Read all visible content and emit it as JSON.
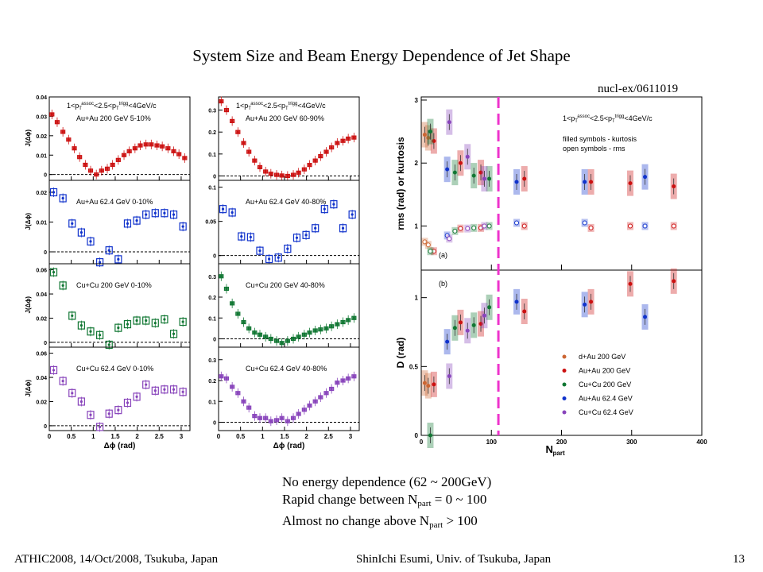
{
  "title": "System Size and Beam Energy Dependence of Jet Shape",
  "reference": "nucl-ex/0611019",
  "notes": [
    {
      "pre": "No energy dependence (62 ~ 200GeV)",
      "sub": "",
      "post": ""
    },
    {
      "pre": "Rapid change between N",
      "sub": "part",
      "post": " = 0 ~ 100"
    },
    {
      "pre": "Almost no change above N",
      "sub": "part",
      "post": " > 100"
    }
  ],
  "footer": {
    "left": "ATHIC2008, 14/Oct/2008, Tsukuba, Japan",
    "center": "ShinIchi Esumi, Univ. of Tsukuba, Japan",
    "page": "13"
  },
  "colors": {
    "auau200": "#cc1111",
    "auau62": "#1133cc",
    "cucu200": "#117733",
    "cucu62": "#8844bb",
    "dau": "#cc6633",
    "magenta": "#ee33cc"
  },
  "chart_data": [
    {
      "type": "scatter",
      "column": "left",
      "xlabel": "Δϕ (rad)",
      "ylabel": "J(Δϕ)",
      "xlim": [
        0,
        3.2
      ],
      "x_ticks": [
        "0",
        "0.5",
        "1",
        "1.5",
        "2",
        "2.5",
        "3"
      ],
      "kinematics": "1<p_T^assoc<2.5<p_T^trigg<4GeV/c",
      "panels": [
        {
          "label": "Au+Au 200 GeV 5-10%",
          "color": "#cc1111",
          "ylim": [
            -0.003,
            0.04
          ],
          "y_ticks": [
            "0",
            "0.01",
            "0.02",
            "0.03",
            "0.04"
          ],
          "x": [
            0.06,
            0.18,
            0.31,
            0.44,
            0.57,
            0.69,
            0.82,
            0.94,
            1.07,
            1.19,
            1.32,
            1.44,
            1.57,
            1.7,
            1.82,
            1.95,
            2.07,
            2.2,
            2.32,
            2.45,
            2.57,
            2.7,
            2.83,
            2.95,
            3.08
          ],
          "y": [
            0.031,
            0.027,
            0.022,
            0.018,
            0.0135,
            0.009,
            0.005,
            0.002,
            0.0,
            0.002,
            0.003,
            0.005,
            0.0075,
            0.01,
            0.012,
            0.0135,
            0.015,
            0.0155,
            0.0155,
            0.015,
            0.0145,
            0.0135,
            0.012,
            0.0105,
            0.0085
          ]
        },
        {
          "label": "Au+Au 62.4 GeV 0-10%",
          "color": "#1133cc",
          "ylim": [
            -0.004,
            0.024
          ],
          "y_ticks": [
            "0",
            "0.01",
            "0.02"
          ],
          "x": [
            0.1,
            0.31,
            0.52,
            0.73,
            0.94,
            1.15,
            1.36,
            1.57,
            1.78,
            1.99,
            2.2,
            2.41,
            2.62,
            2.83,
            3.04
          ],
          "y": [
            0.02,
            0.018,
            0.0095,
            0.0065,
            0.0035,
            -0.0035,
            0.0005,
            -0.0025,
            0.0095,
            0.0105,
            0.0125,
            0.013,
            0.013,
            0.0125,
            0.0085
          ]
        },
        {
          "label": "Cu+Cu 200 GeV 0-10%",
          "color": "#117733",
          "ylim": [
            -0.004,
            0.065
          ],
          "y_ticks": [
            "0",
            "0.02",
            "0.04",
            "0.06"
          ],
          "x": [
            0.1,
            0.31,
            0.52,
            0.73,
            0.94,
            1.15,
            1.36,
            1.57,
            1.78,
            1.99,
            2.2,
            2.41,
            2.62,
            2.83,
            3.04
          ],
          "y": [
            0.058,
            0.047,
            0.022,
            0.014,
            0.009,
            0.006,
            -0.002,
            0.012,
            0.015,
            0.018,
            0.018,
            0.016,
            0.019,
            0.007,
            0.017
          ]
        },
        {
          "label": "Cu+Cu 62.4 GeV 0-10%",
          "color": "#8844bb",
          "ylim": [
            -0.004,
            0.065
          ],
          "y_ticks": [
            "0",
            "0.02",
            "0.04",
            "0.06"
          ],
          "x": [
            0.1,
            0.31,
            0.52,
            0.73,
            0.94,
            1.15,
            1.36,
            1.57,
            1.78,
            1.99,
            2.2,
            2.41,
            2.62,
            2.83,
            3.04
          ],
          "y": [
            0.046,
            0.037,
            0.027,
            0.02,
            0.009,
            -0.001,
            0.01,
            0.013,
            0.019,
            0.024,
            0.034,
            0.029,
            0.03,
            0.03,
            0.028
          ]
        }
      ]
    },
    {
      "type": "scatter",
      "column": "middle",
      "xlabel": "Δϕ (rad)",
      "ylabel": "",
      "xlim": [
        0,
        3.2
      ],
      "x_ticks": [
        "0",
        "0.5",
        "1",
        "1.5",
        "2",
        "2.5",
        "3"
      ],
      "kinematics": "1<p_T^assoc<2.5<p_T^trigg<4GeV/c",
      "panels": [
        {
          "label": "Au+Au 200 GeV 60-90%",
          "color": "#cc1111",
          "ylim": [
            -0.02,
            0.36
          ],
          "y_ticks": [
            "0",
            "0.1",
            "0.2",
            "0.3"
          ],
          "x": [
            0.06,
            0.18,
            0.31,
            0.44,
            0.57,
            0.69,
            0.82,
            0.94,
            1.07,
            1.19,
            1.32,
            1.44,
            1.57,
            1.7,
            1.82,
            1.95,
            2.07,
            2.2,
            2.32,
            2.45,
            2.57,
            2.7,
            2.83,
            2.95,
            3.08
          ],
          "y": [
            0.34,
            0.3,
            0.25,
            0.2,
            0.15,
            0.11,
            0.07,
            0.04,
            0.02,
            0.01,
            0.005,
            0.002,
            0.0,
            0.005,
            0.015,
            0.03,
            0.05,
            0.07,
            0.09,
            0.11,
            0.13,
            0.15,
            0.16,
            0.17,
            0.175
          ]
        },
        {
          "label": "Au+Au 62.4 GeV 40-80%",
          "color": "#1133cc",
          "ylim": [
            -0.012,
            0.11
          ],
          "y_ticks": [
            "0",
            "0.05",
            "0.1"
          ],
          "x": [
            0.1,
            0.31,
            0.52,
            0.73,
            0.94,
            1.15,
            1.36,
            1.57,
            1.78,
            1.99,
            2.2,
            2.41,
            2.62,
            2.83,
            3.04
          ],
          "y": [
            0.068,
            0.063,
            0.028,
            0.027,
            0.007,
            -0.005,
            -0.003,
            0.01,
            0.026,
            0.03,
            0.04,
            0.068,
            0.075,
            0.04,
            0.06
          ]
        },
        {
          "label": "Cu+Cu 200 GeV 40-80%",
          "color": "#117733",
          "ylim": [
            -0.04,
            0.36
          ],
          "y_ticks": [
            "0",
            "0.1",
            "0.2",
            "0.3"
          ],
          "x": [
            0.06,
            0.18,
            0.31,
            0.44,
            0.57,
            0.69,
            0.82,
            0.94,
            1.07,
            1.19,
            1.32,
            1.44,
            1.57,
            1.7,
            1.82,
            1.95,
            2.07,
            2.2,
            2.32,
            2.45,
            2.57,
            2.7,
            2.83,
            2.95,
            3.08
          ],
          "y": [
            0.3,
            0.24,
            0.17,
            0.12,
            0.08,
            0.05,
            0.03,
            0.02,
            0.01,
            0.0,
            -0.01,
            -0.02,
            -0.01,
            0.0,
            0.01,
            0.02,
            0.03,
            0.04,
            0.045,
            0.05,
            0.06,
            0.07,
            0.08,
            0.09,
            0.1
          ]
        },
        {
          "label": "Cu+Cu 62.4 GeV 40-80%",
          "color": "#8844bb",
          "ylim": [
            -0.04,
            0.36
          ],
          "y_ticks": [
            "0",
            "0.1",
            "0.2",
            "0.3"
          ],
          "x": [
            0.06,
            0.18,
            0.31,
            0.44,
            0.57,
            0.69,
            0.82,
            0.94,
            1.07,
            1.19,
            1.32,
            1.44,
            1.57,
            1.7,
            1.82,
            1.95,
            2.07,
            2.2,
            2.32,
            2.45,
            2.57,
            2.7,
            2.83,
            2.95,
            3.08
          ],
          "y": [
            0.22,
            0.21,
            0.17,
            0.14,
            0.1,
            0.07,
            0.03,
            0.02,
            0.02,
            0.005,
            0.01,
            0.02,
            0.005,
            0.02,
            0.04,
            0.06,
            0.08,
            0.1,
            0.12,
            0.14,
            0.16,
            0.19,
            0.2,
            0.21,
            0.22
          ]
        }
      ]
    },
    {
      "type": "scatter",
      "column": "right-top",
      "panel_tag": "(a)",
      "ylabel": "rms (rad) or kurtosis",
      "xlim": [
        0,
        400
      ],
      "ylim": [
        0.3,
        3.05
      ],
      "y_ticks": [
        "1",
        "2",
        "3"
      ],
      "kinematics": "1<p_T^assoc<2.5<p_T^trigg<4GeV/c",
      "notes": [
        "filled symbols - kurtosis",
        "open symbols - rms"
      ],
      "series": [
        {
          "name": "d+Au 200 GeV",
          "color": "#cc6633",
          "x": [
            5,
            10
          ],
          "y": [
            2.45,
            2.4
          ],
          "rms": [
            0.75,
            0.7
          ]
        },
        {
          "name": "Au+Au 200 GeV",
          "color": "#cc1111",
          "x": [
            18,
            56,
            85,
            147,
            242,
            298,
            360
          ],
          "y": [
            2.35,
            2.0,
            1.85,
            1.75,
            1.7,
            1.68,
            1.63
          ],
          "rms": [
            0.6,
            0.96,
            0.97,
            1.0,
            0.97,
            1.0,
            1.0
          ]
        },
        {
          "name": "Cu+Cu 200 GeV",
          "color": "#117733",
          "x": [
            13,
            48,
            75,
            97
          ],
          "y": [
            2.5,
            1.85,
            1.8,
            1.75
          ],
          "rms": [
            0.6,
            0.92,
            0.97,
            1.0
          ]
        },
        {
          "name": "Au+Au 62.4 GeV",
          "color": "#1133cc",
          "x": [
            37,
            136,
            233,
            319
          ],
          "y": [
            1.9,
            1.7,
            1.7,
            1.78
          ],
          "rms": [
            0.85,
            1.05,
            1.05,
            1.0
          ]
        },
        {
          "name": "Cu+Cu 62.4 GeV",
          "color": "#8844bb",
          "x": [
            40,
            66,
            90
          ],
          "y": [
            2.65,
            2.1,
            1.75
          ],
          "rms": [
            0.8,
            0.96,
            1.0
          ]
        }
      ]
    },
    {
      "type": "scatter",
      "column": "right-bottom",
      "panel_tag": "(b)",
      "xlabel": "N_part",
      "ylabel": "D (rad)",
      "xlim": [
        0,
        400
      ],
      "ylim": [
        0,
        1.2
      ],
      "x_ticks": [
        "0",
        "100",
        "200",
        "300",
        "400"
      ],
      "y_ticks": [
        "0",
        "0.5",
        "1"
      ],
      "series": [
        {
          "name": "d+Au 200 GeV",
          "color": "#cc6633",
          "x": [
            5,
            10
          ],
          "y": [
            0.38,
            0.36
          ]
        },
        {
          "name": "Au+Au 200 GeV",
          "color": "#cc1111",
          "x": [
            18,
            56,
            85,
            147,
            242,
            298,
            360
          ],
          "y": [
            0.37,
            0.82,
            0.81,
            0.9,
            0.97,
            1.1,
            1.12
          ]
        },
        {
          "name": "Cu+Cu 200 GeV",
          "color": "#117733",
          "x": [
            13,
            48,
            75,
            97
          ],
          "y": [
            0.0,
            0.78,
            0.8,
            0.93
          ]
        },
        {
          "name": "Au+Au 62.4 GeV",
          "color": "#1133cc",
          "x": [
            37,
            136,
            233,
            319
          ],
          "y": [
            0.68,
            0.97,
            0.95,
            0.86
          ]
        },
        {
          "name": "Cu+Cu 62.4 GeV",
          "color": "#8844bb",
          "x": [
            40,
            66,
            90
          ],
          "y": [
            0.43,
            0.76,
            0.87
          ]
        }
      ]
    }
  ]
}
